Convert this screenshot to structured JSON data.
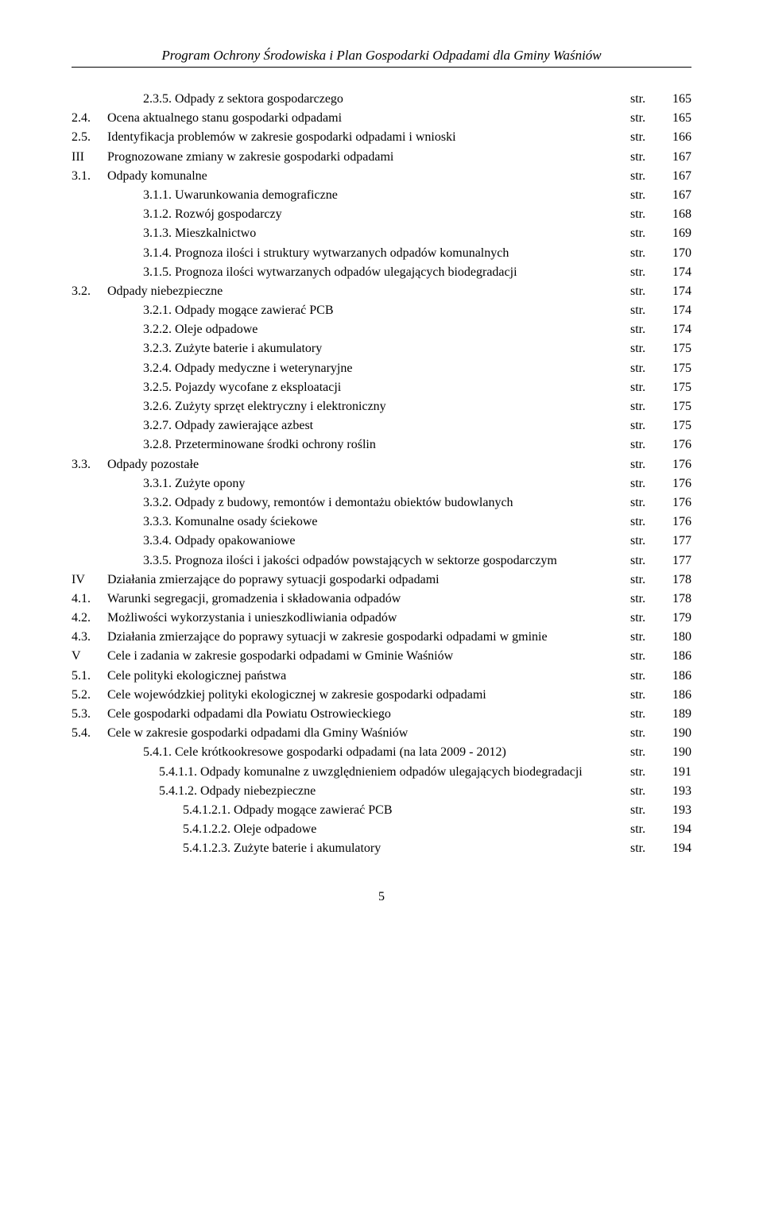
{
  "header": {
    "title": "Program Ochrony Środowiska i Plan Gospodarki Odpadami dla Gminy Waśniów"
  },
  "str_label": "str.",
  "rows": [
    {
      "num": "2.3.5.",
      "title": "Odpady z sektora gospodarczego",
      "page": "165",
      "indent": 2,
      "num_in_col": false
    },
    {
      "num": "2.4.",
      "title": "Ocena aktualnego stanu gospodarki odpadami",
      "page": "165",
      "indent": 1,
      "num_in_col": true
    },
    {
      "num": "2.5.",
      "title": "Identyfikacja problemów w zakresie gospodarki odpadami i wnioski",
      "page": "166",
      "indent": 1,
      "num_in_col": true
    },
    {
      "num": "III",
      "title": "Prognozowane zmiany w zakresie gospodarki odpadami",
      "page": "167",
      "indent": 1,
      "num_in_col": true
    },
    {
      "num": "3.1.",
      "title": "Odpady komunalne",
      "page": "167",
      "indent": 1,
      "num_in_col": true
    },
    {
      "num": "3.1.1.",
      "title": "Uwarunkowania demograficzne",
      "page": "167",
      "indent": 2,
      "num_in_col": false
    },
    {
      "num": "3.1.2.",
      "title": "Rozwój gospodarczy",
      "page": "168",
      "indent": 2,
      "num_in_col": false
    },
    {
      "num": "3.1.3.",
      "title": "Mieszkalnictwo",
      "page": "169",
      "indent": 2,
      "num_in_col": false
    },
    {
      "num": "3.1.4.",
      "title": "Prognoza ilości i struktury wytwarzanych odpadów komunalnych",
      "page": "170",
      "indent": 2,
      "num_in_col": false,
      "str_top": true
    },
    {
      "num": "3.1.5.",
      "title": "Prognoza ilości wytwarzanych odpadów ulegających biodegradacji",
      "page": "174",
      "indent": 2,
      "num_in_col": false
    },
    {
      "num": "3.2.",
      "title": "Odpady niebezpieczne",
      "page": "174",
      "indent": 1,
      "num_in_col": true
    },
    {
      "num": "3.2.1.",
      "title": "Odpady mogące zawierać PCB",
      "page": "174",
      "indent": 2,
      "num_in_col": false
    },
    {
      "num": "3.2.2.",
      "title": "Oleje odpadowe",
      "page": "174",
      "indent": 2,
      "num_in_col": false
    },
    {
      "num": "3.2.3.",
      "title": "Zużyte baterie i akumulatory",
      "page": "175",
      "indent": 2,
      "num_in_col": false
    },
    {
      "num": "3.2.4.",
      "title": "Odpady medyczne i weterynaryjne",
      "page": "175",
      "indent": 2,
      "num_in_col": false
    },
    {
      "num": "3.2.5.",
      "title": "Pojazdy wycofane z eksploatacji",
      "page": "175",
      "indent": 2,
      "num_in_col": false
    },
    {
      "num": "3.2.6.",
      "title": "Zużyty sprzęt elektryczny i elektroniczny",
      "page": "175",
      "indent": 2,
      "num_in_col": false
    },
    {
      "num": "3.2.7.",
      "title": "Odpady zawierające azbest",
      "page": "175",
      "indent": 2,
      "num_in_col": false
    },
    {
      "num": "3.2.8.",
      "title": "Przeterminowane środki ochrony roślin",
      "page": "176",
      "indent": 2,
      "num_in_col": false
    },
    {
      "num": "3.3.",
      "title": "Odpady pozostałe",
      "page": "176",
      "indent": 1,
      "num_in_col": true
    },
    {
      "num": "3.3.1.",
      "title": "Zużyte opony",
      "page": "176",
      "indent": 2,
      "num_in_col": false
    },
    {
      "num": "3.3.2.",
      "title": "Odpady z budowy, remontów i demontażu obiektów budowlanych",
      "page": "176",
      "indent": 2,
      "num_in_col": false,
      "str_top": true
    },
    {
      "num": "3.3.3.",
      "title": "Komunalne osady ściekowe",
      "page": "176",
      "indent": 2,
      "num_in_col": false
    },
    {
      "num": "3.3.4.",
      "title": "Odpady opakowaniowe",
      "page": "177",
      "indent": 2,
      "num_in_col": false
    },
    {
      "num": "3.3.5.",
      "title": "Prognoza ilości i jakości odpadów powstających  w sektorze gospodarczym",
      "page": "177",
      "indent": 2,
      "num_in_col": false
    },
    {
      "num": "IV",
      "title": "Działania zmierzające do poprawy sytuacji gospodarki odpadami",
      "page": "178",
      "indent": 1,
      "num_in_col": true
    },
    {
      "num": "4.1.",
      "title": "Warunki segregacji, gromadzenia i składowania odpadów",
      "page": "178",
      "indent": 1,
      "num_in_col": true
    },
    {
      "num": "4.2.",
      "title": "Możliwości wykorzystania i unieszkodliwiania odpadów",
      "page": "179",
      "indent": 1,
      "num_in_col": true
    },
    {
      "num": "4.3.",
      "title": "Działania zmierzające do poprawy sytuacji w zakresie gospodarki odpadami w gminie",
      "page": "180",
      "indent": 1,
      "num_in_col": true,
      "str_top": true
    },
    {
      "num": "V",
      "title": "Cele i zadania w zakresie gospodarki odpadami w Gminie Waśniów",
      "page": "186",
      "indent": 1,
      "num_in_col": true
    },
    {
      "num": "5.1.",
      "title": "Cele polityki ekologicznej państwa",
      "page": "186",
      "indent": 1,
      "num_in_col": true
    },
    {
      "num": "5.2.",
      "title": "Cele wojewódzkiej polityki ekologicznej w zakresie gospodarki odpadami",
      "page": "186",
      "indent": 1,
      "num_in_col": true,
      "str_top": true
    },
    {
      "num": "5.3.",
      "title": "Cele gospodarki odpadami dla Powiatu Ostrowieckiego",
      "page": "189",
      "indent": 1,
      "num_in_col": true
    },
    {
      "num": "5.4.",
      "title": "Cele w zakresie gospodarki odpadami dla Gminy Waśniów",
      "page": "190",
      "indent": 1,
      "num_in_col": true
    },
    {
      "num": "5.4.1.",
      "title": "Cele krótkookresowe gospodarki odpadami (na lata 2009 - 2012)",
      "page": "190",
      "indent": 2,
      "num_in_col": false
    },
    {
      "num": "5.4.1.1.",
      "title": "Odpady komunalne z uwzględnieniem odpadów ulegających biodegradacji",
      "page": "191",
      "indent": 3,
      "num_in_col": false
    },
    {
      "num": "5.4.1.2.",
      "title": "Odpady niebezpieczne",
      "page": "193",
      "indent": 3,
      "num_in_col": false
    },
    {
      "num": "5.4.1.2.1.",
      "title": "Odpady mogące zawierać PCB",
      "page": "193",
      "indent": 4,
      "num_in_col": false
    },
    {
      "num": "5.4.1.2.2.",
      "title": "Oleje odpadowe",
      "page": "194",
      "indent": 4,
      "num_in_col": false
    },
    {
      "num": "5.4.1.2.3.",
      "title": "Zużyte baterie i akumulatory",
      "page": "194",
      "indent": 4,
      "num_in_col": false
    }
  ],
  "footer": {
    "page_number": "5"
  }
}
